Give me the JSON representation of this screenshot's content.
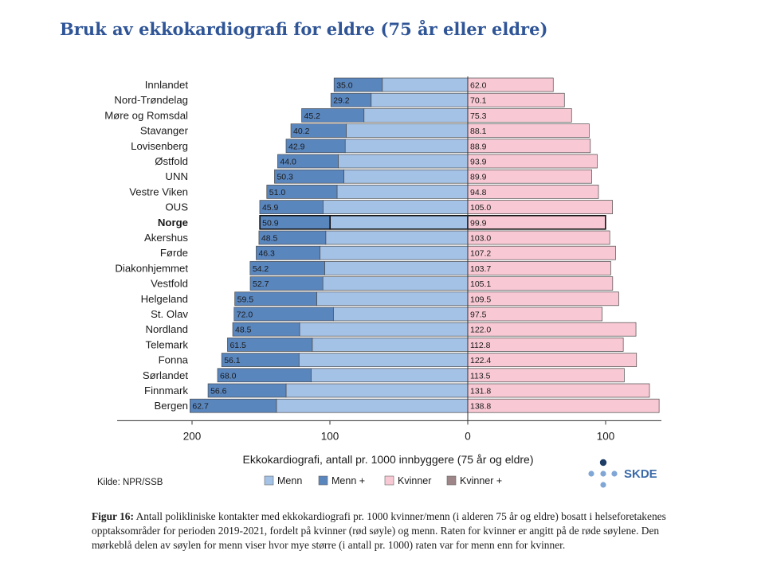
{
  "title": "Bruk av ekkokardiografi for eldre (75 år eller eldre)",
  "caption": {
    "label": "Figur 16:",
    "text": "Antall polikliniske kontakter med ekkokardiografi pr. 1000 kvinner/menn (i alderen 75 år og eldre) bosatt i helseforetakenes opptaksområder for perioden 2019-2021, fordelt på kvinner (rød søyle) og menn. Raten for kvinner er angitt på de røde søylene. Den mørkeblå delen av søylen for menn viser hvor mye større (i antall pr. 1000) raten var for menn enn for kvinner."
  },
  "source": "Kilde: NPR/SSB",
  "logo_text": "SKDE",
  "colors": {
    "menn": "#a4c1e6",
    "menn_plus": "#5a86be",
    "kvinner": "#f8c9d4",
    "kvinner_plus": "#9e8588",
    "border": "#4a4a4a"
  },
  "chart_data": {
    "type": "bar",
    "orientation": "horizontal-diverging",
    "xlabel": "Ekkokardiografi, antall pr. 1000 innbyggere (75 år og eldre)",
    "x_ticks": [
      {
        "value": -200,
        "label": "200"
      },
      {
        "value": -100,
        "label": "100"
      },
      {
        "value": 0,
        "label": "0"
      },
      {
        "value": 100,
        "label": "100"
      }
    ],
    "xlim": [
      -200,
      140
    ],
    "highlight": "Norge",
    "legend": [
      "Menn",
      "Menn +",
      "Kvinner",
      "Kvinner +"
    ],
    "categories": [
      "Innlandet",
      "Nord-Trøndelag",
      "Møre og Romsdal",
      "Stavanger",
      "Lovisenberg",
      "Østfold",
      "UNN",
      "Vestre Viken",
      "OUS",
      "Norge",
      "Akershus",
      "Førde",
      "Diakonhjemmet",
      "Vestfold",
      "Helgeland",
      "St. Olav",
      "Nordland",
      "Telemark",
      "Fonna",
      "Sørlandet",
      "Finnmark",
      "Bergen"
    ],
    "kvinner": [
      62.0,
      70.1,
      75.3,
      88.1,
      88.9,
      93.9,
      89.9,
      94.8,
      105.0,
      99.9,
      103.0,
      107.2,
      103.7,
      105.1,
      109.5,
      97.5,
      122.0,
      112.8,
      122.4,
      113.5,
      131.8,
      138.8
    ],
    "menn_plus": [
      35.0,
      29.2,
      45.2,
      40.2,
      42.9,
      44.0,
      50.3,
      51.0,
      45.9,
      50.9,
      48.5,
      46.3,
      54.2,
      52.7,
      59.5,
      72.0,
      48.5,
      61.5,
      56.1,
      68.0,
      56.6,
      62.7
    ],
    "kvinner_labels": [
      "62.0",
      "70.1",
      "75.3",
      "88.1",
      "88.9",
      "93.9",
      "89.9",
      "94.8",
      "105.0",
      "99.9",
      "103.0",
      "107.2",
      "103.7",
      "105.1",
      "109.5",
      "97.5",
      "122.0",
      "112.8",
      "122.4",
      "113.5",
      "131.8",
      "138.8"
    ],
    "menn_plus_labels": [
      "35.0",
      "29.2",
      "45.2",
      "40.2",
      "42.9",
      "44.0",
      "50.3",
      "51.0",
      "45.9",
      "50.9",
      "48.5",
      "46.3",
      "54.2",
      "52.7",
      "59.5",
      "72.0",
      "48.5",
      "61.5",
      "56.1",
      "68.0",
      "56.6",
      "62.7"
    ]
  }
}
